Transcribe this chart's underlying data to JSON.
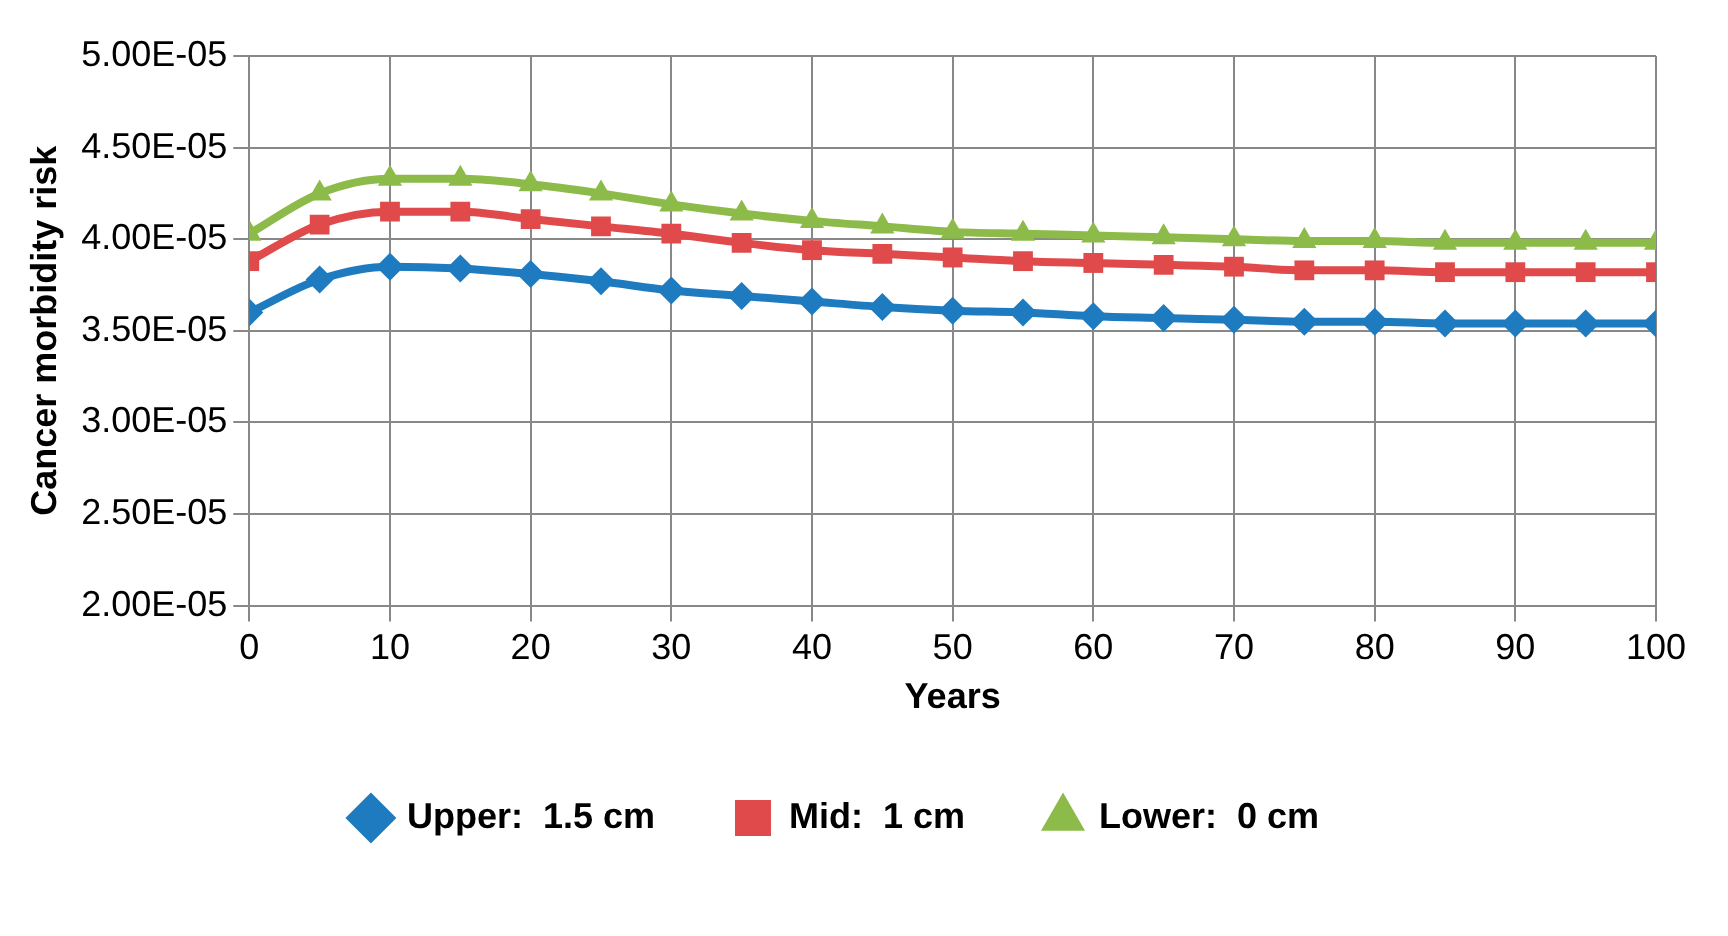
{
  "chart_data": {
    "type": "line",
    "xlabel": "Years",
    "ylabel": "Cancer morbidity risk",
    "x": [
      0,
      5,
      10,
      15,
      20,
      25,
      30,
      35,
      40,
      45,
      50,
      55,
      60,
      65,
      70,
      75,
      80,
      85,
      90,
      95,
      100
    ],
    "series": [
      {
        "name": "Upper:  1.5 cm",
        "color": "#1f7bbf",
        "marker": "diamond",
        "values": [
          3.6e-05,
          3.78e-05,
          3.85e-05,
          3.84e-05,
          3.81e-05,
          3.77e-05,
          3.72e-05,
          3.69e-05,
          3.66e-05,
          3.63e-05,
          3.61e-05,
          3.6e-05,
          3.58e-05,
          3.57e-05,
          3.56e-05,
          3.55e-05,
          3.55e-05,
          3.54e-05,
          3.54e-05,
          3.54e-05,
          3.54e-05
        ]
      },
      {
        "name": "Mid:  1 cm",
        "color": "#e04a4a",
        "marker": "square",
        "values": [
          3.88e-05,
          4.08e-05,
          4.15e-05,
          4.15e-05,
          4.11e-05,
          4.07e-05,
          4.03e-05,
          3.98e-05,
          3.94e-05,
          3.92e-05,
          3.9e-05,
          3.88e-05,
          3.87e-05,
          3.86e-05,
          3.85e-05,
          3.83e-05,
          3.83e-05,
          3.82e-05,
          3.82e-05,
          3.82e-05,
          3.82e-05
        ]
      },
      {
        "name": "Lower:  0 cm",
        "color": "#8cbb4a",
        "marker": "triangle",
        "values": [
          4.03e-05,
          4.25e-05,
          4.33e-05,
          4.33e-05,
          4.3e-05,
          4.25e-05,
          4.19e-05,
          4.14e-05,
          4.1e-05,
          4.07e-05,
          4.04e-05,
          4.03e-05,
          4.02e-05,
          4.01e-05,
          4e-05,
          3.99e-05,
          3.99e-05,
          3.98e-05,
          3.98e-05,
          3.98e-05,
          3.98e-05
        ]
      }
    ],
    "xlim": [
      0,
      100
    ],
    "xticks": [
      0,
      10,
      20,
      30,
      40,
      50,
      60,
      70,
      80,
      90,
      100
    ],
    "ylim": [
      2e-05,
      5e-05
    ],
    "yticks": [
      {
        "value": 2e-05,
        "label": "2.00E-05"
      },
      {
        "value": 2.5e-05,
        "label": "2.50E-05"
      },
      {
        "value": 3e-05,
        "label": "3.00E-05"
      },
      {
        "value": 3.5e-05,
        "label": "3.50E-05"
      },
      {
        "value": 4e-05,
        "label": "4.00E-05"
      },
      {
        "value": 4.5e-05,
        "label": "4.50E-05"
      },
      {
        "value": 5e-05,
        "label": "5.00E-05"
      }
    ],
    "grid": true,
    "legend": "bottom",
    "line_style": "solid"
  }
}
